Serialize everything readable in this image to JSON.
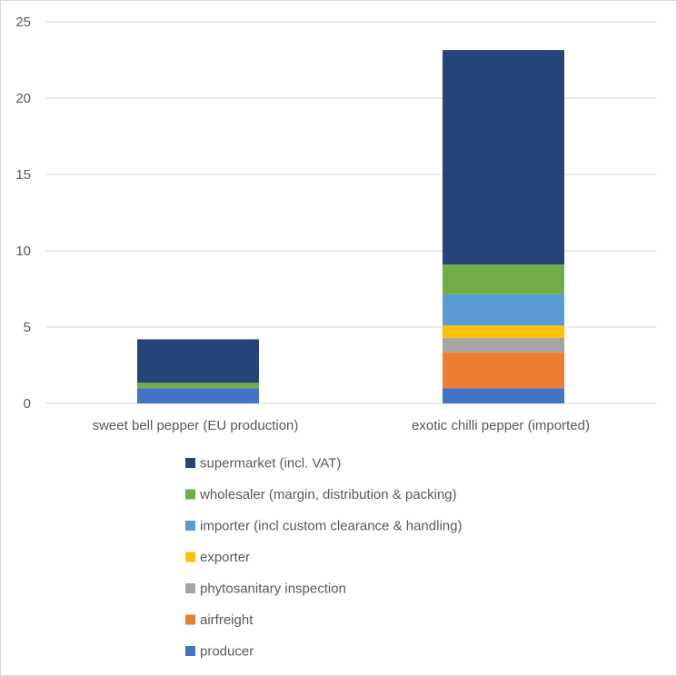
{
  "chart_data": {
    "type": "bar",
    "stacked": true,
    "title": "",
    "xlabel": "",
    "ylabel": "",
    "ylim": [
      0,
      25
    ],
    "yticks": [
      "0",
      "5",
      "10",
      "15",
      "20",
      "25"
    ],
    "grid": "horizontal",
    "legend_position": "bottom",
    "categories": [
      "sweet bell pepper (EU production)",
      "exotic chilli pepper (imported)"
    ],
    "series": [
      {
        "name": "producer",
        "color": "#4472C4",
        "values": [
          1.0,
          1.0
        ]
      },
      {
        "name": "airfreight",
        "color": "#ED7D31",
        "values": [
          0,
          2.35
        ]
      },
      {
        "name": "phytosanitary inspection",
        "color": "#A5A5A5",
        "values": [
          0,
          0.95
        ]
      },
      {
        "name": "exporter",
        "color": "#FFC000",
        "values": [
          0,
          0.8
        ]
      },
      {
        "name": "importer (incl custom clearance & handling)",
        "color": "#5B9BD5",
        "values": [
          0,
          2.05
        ]
      },
      {
        "name": "wholesaler (margin, distribution & packing)",
        "color": "#70AD47",
        "values": [
          0.35,
          1.95
        ]
      },
      {
        "name": "supermarket (incl. VAT)",
        "color": "#264478",
        "values": [
          2.85,
          14.05
        ]
      }
    ],
    "legend_order": [
      "supermarket (incl. VAT)",
      "wholesaler (margin, distribution & packing)",
      "importer (incl custom clearance & handling)",
      "exporter",
      "phytosanitary inspection",
      "airfreight",
      "producer"
    ]
  }
}
